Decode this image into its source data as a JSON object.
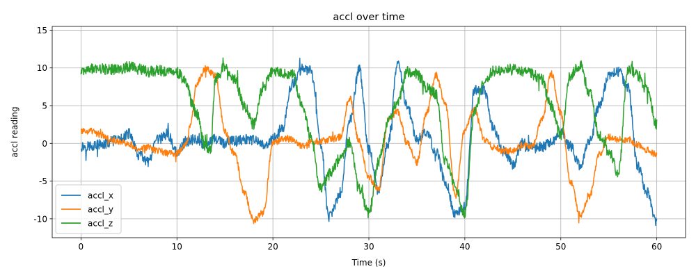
{
  "chart_data": {
    "type": "line",
    "title": "accl over time",
    "xlabel": "Time (s)",
    "ylabel": "accl reading",
    "xlim": [
      -3,
      63
    ],
    "ylim": [
      -12.5,
      15.5
    ],
    "xticks": [
      0,
      10,
      20,
      30,
      40,
      50,
      60
    ],
    "yticks": [
      -10,
      -5,
      0,
      5,
      10,
      15
    ],
    "grid": true,
    "legend_position": "lower-left",
    "series": [
      {
        "name": "accl_x",
        "color": "#1f77b4",
        "noise": 0.7,
        "x": [
          0,
          2,
          4,
          5,
          6,
          7,
          8,
          9,
          10,
          11,
          12,
          13,
          14,
          15,
          16,
          17,
          18,
          19,
          20,
          21,
          22,
          23,
          24,
          25,
          25.8,
          27,
          28,
          29,
          30,
          31,
          32,
          33,
          34,
          35,
          36,
          37,
          38,
          39,
          40,
          41,
          42,
          43,
          44,
          45,
          46,
          47,
          48,
          49,
          50,
          51,
          52,
          53,
          54,
          55,
          56,
          57,
          58,
          59,
          60
        ],
        "y": [
          -0.4,
          -0.2,
          0.5,
          1.3,
          -1.5,
          -2.5,
          0.5,
          1.2,
          -1.2,
          0.3,
          0.6,
          -0.2,
          0.6,
          0,
          0.3,
          0.5,
          0.4,
          -0.2,
          0.5,
          2,
          7.8,
          9.8,
          9.6,
          0,
          -9.8,
          -7,
          3,
          9.8,
          -0.8,
          -6.5,
          0,
          10.5,
          5,
          0.5,
          1.5,
          -1.2,
          -5.2,
          -9.5,
          -8.2,
          7,
          7,
          2,
          -1,
          -2.8,
          0,
          -0.6,
          -0.5,
          0.2,
          1.5,
          -0.4,
          -3,
          0.5,
          5,
          9,
          9.5,
          7.5,
          -3,
          -6.5,
          -10.5
        ]
      },
      {
        "name": "accl_y",
        "color": "#ff7f0e",
        "noise": 0.45,
        "x": [
          0,
          1,
          2,
          3,
          4,
          5,
          6,
          7,
          8,
          9,
          10,
          11,
          11.5,
          12,
          13,
          14,
          15,
          16,
          17,
          18,
          19,
          20,
          21,
          22,
          23,
          24,
          25,
          26,
          27,
          28,
          29,
          30,
          31,
          32,
          33,
          34,
          35,
          36,
          37,
          38,
          39,
          40,
          41,
          42,
          43,
          44,
          45,
          46,
          47,
          48,
          49,
          50,
          51,
          52,
          53,
          54,
          55,
          56,
          57,
          58,
          59,
          60
        ],
        "y": [
          1.6,
          1.6,
          1.2,
          0.5,
          0.3,
          0,
          -0.8,
          -0.5,
          -1,
          -1.3,
          -1.3,
          0,
          3,
          7.8,
          9.9,
          9,
          1.5,
          -1.5,
          -6.5,
          -10.2,
          -9.2,
          0,
          0.6,
          0.5,
          -0.3,
          0.2,
          0.3,
          0.5,
          0.8,
          6,
          0.2,
          -4.5,
          -6.2,
          3,
          4.2,
          0,
          -2.5,
          4,
          9,
          5,
          -7,
          2,
          4.5,
          0.5,
          -0.5,
          -1,
          -1,
          -0.3,
          -0.5,
          3,
          9.2,
          4,
          -5,
          -9.5,
          -7,
          -1.5,
          0.8,
          0.5,
          0.5,
          -0.2,
          -0.9,
          -1.5
        ]
      },
      {
        "name": "accl_z",
        "color": "#2ca02c",
        "noise": 0.75,
        "x": [
          0,
          2,
          4,
          5,
          6,
          7,
          8,
          9,
          10,
          11,
          11.5,
          12,
          13,
          13.5,
          14,
          15,
          16,
          17,
          18,
          19,
          20,
          21,
          22,
          23,
          24,
          25,
          26,
          27,
          28,
          29,
          30,
          31,
          32,
          33,
          34,
          35,
          36,
          37,
          38,
          39,
          40,
          41,
          42,
          43,
          44,
          45,
          46,
          47,
          48,
          49,
          50,
          51,
          52,
          53,
          54,
          55,
          56,
          57,
          58,
          59,
          60
        ],
        "y": [
          9.8,
          9.8,
          9.8,
          10.2,
          9.8,
          9.5,
          9.6,
          9.6,
          9.4,
          8.2,
          5.5,
          4,
          -0.5,
          -1,
          8.5,
          10.2,
          8.5,
          5,
          2.5,
          7.5,
          9.5,
          9.2,
          9.3,
          5.5,
          0.5,
          -6,
          -4,
          -2,
          0.2,
          -6,
          -9.2,
          -2.5,
          3,
          5.5,
          9.5,
          9.2,
          7.5,
          6.5,
          -2.5,
          -5.5,
          -9.5,
          4,
          8,
          9.6,
          9.7,
          9.8,
          9.5,
          9.2,
          8.5,
          5,
          1,
          9,
          10.4,
          6.8,
          1,
          -1,
          -4,
          10,
          9,
          7,
          2.5
        ]
      }
    ]
  }
}
